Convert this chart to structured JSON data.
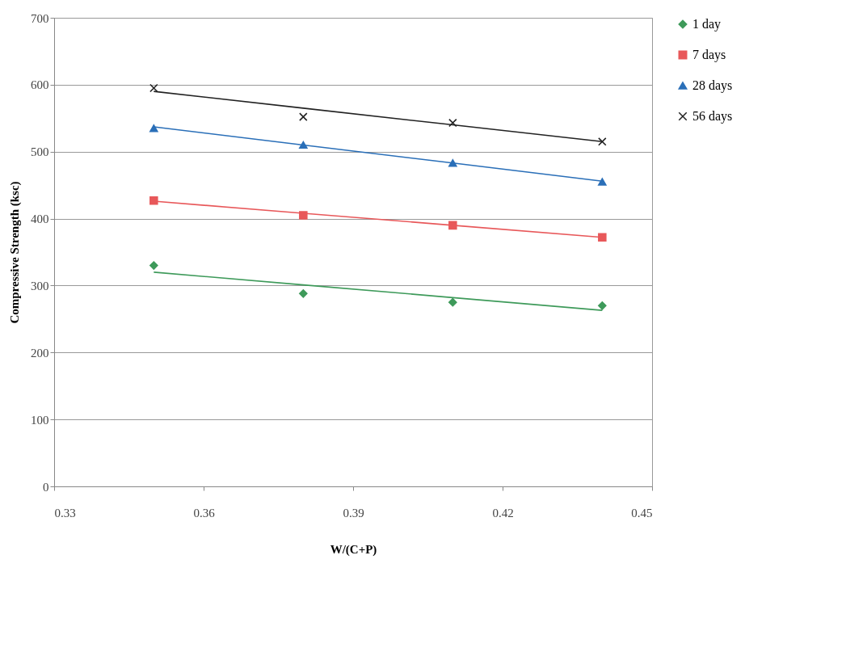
{
  "chart_data": {
    "type": "scatter",
    "xlabel": "W/(C+P)",
    "ylabel": "Compressive Strength (ksc)",
    "x": [
      0.35,
      0.38,
      0.41,
      0.44
    ],
    "series": [
      {
        "name": "1 day",
        "color": "#3e9a5a",
        "marker": "diamond",
        "values": [
          330,
          288,
          275,
          270
        ]
      },
      {
        "name": "7 days",
        "color": "#e8585a",
        "marker": "square",
        "values": [
          427,
          405,
          390,
          372
        ]
      },
      {
        "name": "28 days",
        "color": "#2a6fb8",
        "marker": "triangle",
        "values": [
          535,
          510,
          483,
          455
        ]
      },
      {
        "name": "56 days",
        "color": "#222222",
        "marker": "cross",
        "values": [
          595,
          552,
          543,
          515
        ]
      },
      {
        "type": "line",
        "color": "#3e9a5a",
        "values": [
          320,
          301,
          282,
          263
        ]
      },
      {
        "type": "line",
        "color": "#e8585a",
        "values": [
          426,
          408,
          390,
          372
        ]
      },
      {
        "type": "line",
        "color": "#2a6fb8",
        "values": [
          537,
          510,
          483,
          456
        ]
      },
      {
        "type": "line",
        "color": "#222222",
        "values": [
          590,
          565,
          540,
          515
        ]
      }
    ],
    "xlim": [
      0.33,
      0.45
    ],
    "xticks": [
      0.33,
      0.36,
      0.39,
      0.42,
      0.45
    ],
    "ylim": [
      0,
      700
    ],
    "yticks": [
      0,
      100,
      200,
      300,
      400,
      500,
      600,
      700
    ],
    "grid": "y",
    "legend": "right"
  }
}
